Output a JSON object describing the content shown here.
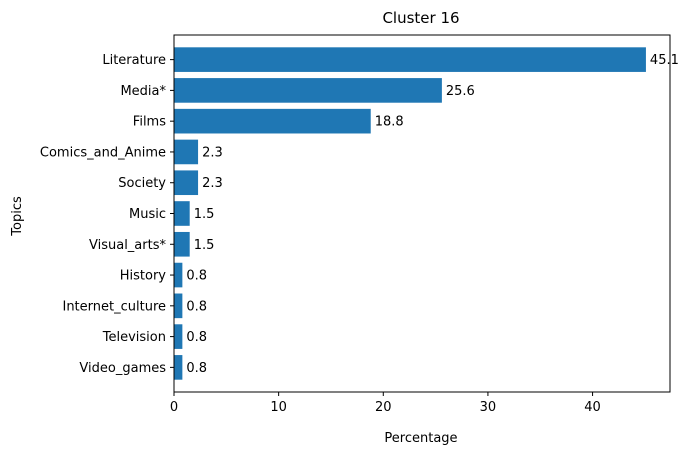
{
  "chart_data": {
    "type": "bar",
    "orientation": "horizontal",
    "title": "Cluster 16",
    "xlabel": "Percentage",
    "ylabel": "Topics",
    "categories": [
      "Literature",
      "Media*",
      "Films",
      "Comics_and_Anime",
      "Society",
      "Music",
      "Visual_arts*",
      "History",
      "Internet_culture",
      "Television",
      "Video_games"
    ],
    "values": [
      45.1,
      25.6,
      18.8,
      2.3,
      2.3,
      1.5,
      1.5,
      0.8,
      0.8,
      0.8,
      0.8
    ],
    "value_labels": [
      "45.1",
      "25.6",
      "18.8",
      "2.3",
      "2.3",
      "1.5",
      "1.5",
      "0.8",
      "0.8",
      "0.8",
      "0.8"
    ],
    "xlim": [
      0,
      47.4
    ],
    "xticks": [
      0,
      10,
      20,
      30,
      40
    ],
    "xtick_labels": [
      "0",
      "10",
      "20",
      "30",
      "40"
    ],
    "grid": false,
    "bar_color": "#1f77b4"
  }
}
